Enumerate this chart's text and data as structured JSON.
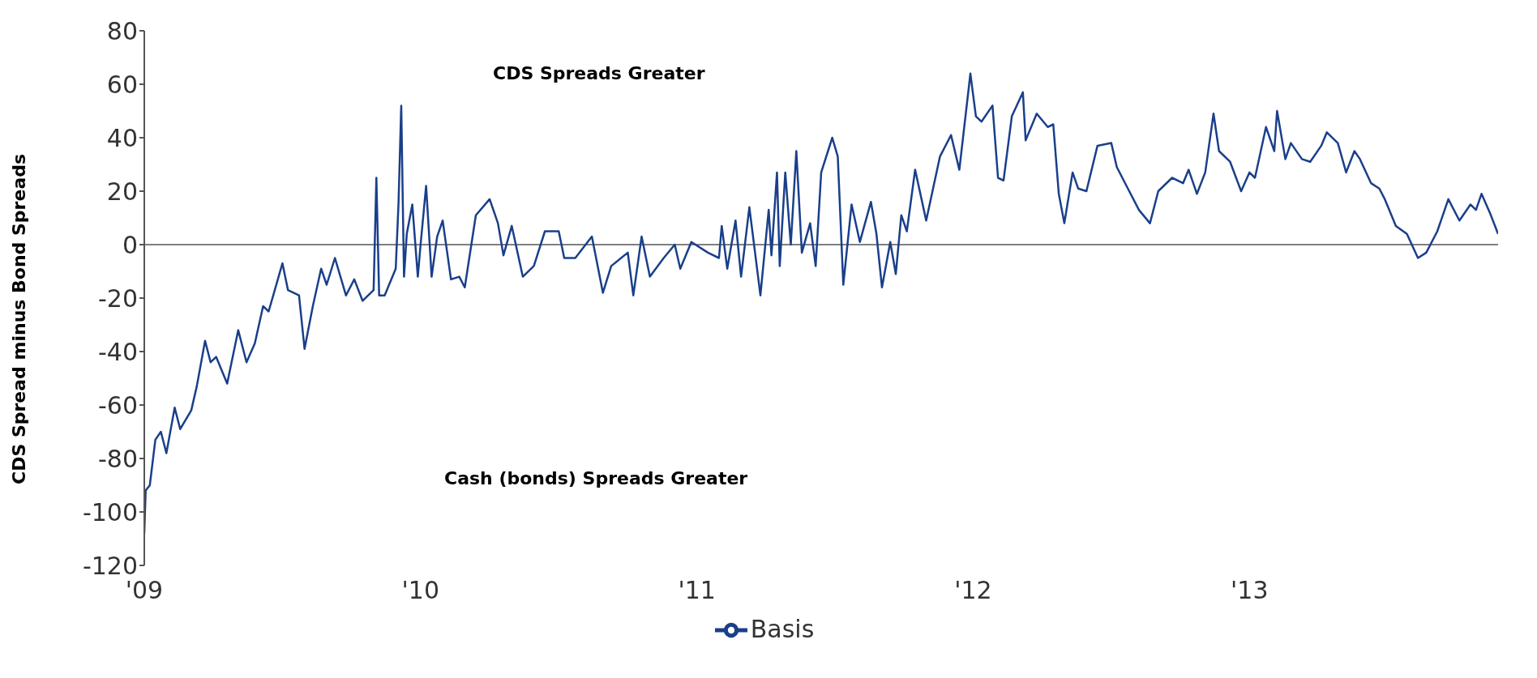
{
  "chart_data": {
    "type": "line",
    "ylabel": "CDS Spread minus Bond Spreads",
    "annotations": [
      "CDS Spreads Greater",
      "Cash (bonds) Spreads Greater"
    ],
    "x": [
      2009.0,
      2009.005,
      2009.02,
      2009.04,
      2009.06,
      2009.08,
      2009.11,
      2009.13,
      2009.17,
      2009.19,
      2009.22,
      2009.24,
      2009.26,
      2009.3,
      2009.34,
      2009.37,
      2009.4,
      2009.43,
      2009.45,
      2009.5,
      2009.52,
      2009.56,
      2009.58,
      2009.61,
      2009.64,
      2009.66,
      2009.69,
      2009.73,
      2009.76,
      2009.79,
      2009.83,
      2009.84,
      2009.85,
      2009.87,
      2009.91,
      2009.92,
      2009.93,
      2009.94,
      2009.95,
      2009.97,
      2009.99,
      2010.0,
      2010.02,
      2010.04,
      2010.06,
      2010.08,
      2010.11,
      2010.14,
      2010.16,
      2010.2,
      2010.25,
      2010.28,
      2010.3,
      2010.33,
      2010.37,
      2010.41,
      2010.45,
      2010.5,
      2010.52,
      2010.56,
      2010.62,
      2010.66,
      2010.69,
      2010.75,
      2010.77,
      2010.8,
      2010.83,
      2010.88,
      2010.92,
      2010.94,
      2010.98,
      2011.04,
      2011.08,
      2011.09,
      2011.11,
      2011.14,
      2011.16,
      2011.19,
      2011.23,
      2011.26,
      2011.27,
      2011.29,
      2011.3,
      2011.32,
      2011.34,
      2011.36,
      2011.38,
      2011.41,
      2011.43,
      2011.45,
      2011.49,
      2011.51,
      2011.53,
      2011.56,
      2011.59,
      2011.63,
      2011.65,
      2011.67,
      2011.7,
      2011.72,
      2011.74,
      2011.76,
      2011.79,
      2011.83,
      2011.88,
      2011.92,
      2011.95,
      2011.99,
      2012.01,
      2012.03,
      2012.07,
      2012.09,
      2012.11,
      2012.14,
      2012.18,
      2012.19,
      2012.23,
      2012.27,
      2012.29,
      2012.31,
      2012.33,
      2012.36,
      2012.38,
      2012.41,
      2012.45,
      2012.5,
      2012.52,
      2012.56,
      2012.6,
      2012.64,
      2012.67,
      2012.72,
      2012.76,
      2012.78,
      2012.81,
      2012.84,
      2012.87,
      2012.89,
      2012.93,
      2012.97,
      2013.0,
      2013.02,
      2013.06,
      2013.09,
      2013.1,
      2013.13,
      2013.15,
      2013.19,
      2013.22,
      2013.26,
      2013.28,
      2013.32,
      2013.35,
      2013.38,
      2013.4,
      2013.44,
      2013.47,
      2013.49,
      2013.53,
      2013.57,
      2013.61,
      2013.64,
      2013.68,
      2013.72,
      2013.76,
      2013.8,
      2013.82,
      2013.84,
      2013.87,
      2013.9
    ],
    "series": [
      {
        "name": "Basis",
        "color": "#1a3f8a",
        "values": [
          -108,
          -92,
          -90,
          -73,
          -70,
          -78,
          -61,
          -69,
          -62,
          -53,
          -36,
          -44,
          -42,
          -52,
          -32,
          -44,
          -37,
          -23,
          -25,
          -7,
          -17,
          -19,
          -39,
          -23,
          -9,
          -15,
          -5,
          -19,
          -13,
          -21,
          -17,
          25,
          -19,
          -19,
          -9,
          15,
          52,
          -12,
          4,
          15,
          -12,
          0,
          22,
          -12,
          3,
          9,
          -13,
          -12,
          -16,
          11,
          17,
          8,
          -4,
          7,
          -12,
          -8,
          5,
          5,
          -5,
          -5,
          3,
          -18,
          -8,
          -3,
          -19,
          3,
          -12,
          -5,
          0,
          -9,
          1,
          -3,
          -5,
          7,
          -9,
          9,
          -12,
          14,
          -19,
          13,
          -4,
          27,
          -8,
          27,
          0,
          35,
          -3,
          8,
          -8,
          27,
          40,
          33,
          -15,
          15,
          1,
          16,
          4,
          -16,
          1,
          -11,
          11,
          5,
          28,
          9,
          33,
          41,
          28,
          64,
          48,
          46,
          52,
          25,
          24,
          48,
          57,
          39,
          49,
          44,
          45,
          19,
          8,
          27,
          21,
          20,
          37,
          38,
          29,
          21,
          13,
          8,
          20,
          25,
          23,
          28,
          19,
          27,
          49,
          35,
          31,
          20,
          27,
          25,
          44,
          35,
          50,
          32,
          38,
          32,
          31,
          37,
          42,
          38,
          27,
          35,
          32,
          23,
          21,
          17,
          7,
          4,
          -5,
          -3,
          5,
          17,
          9,
          15,
          13,
          19,
          12,
          4
        ]
      }
    ],
    "xlim": [
      2009.0,
      2013.9
    ],
    "xticks": [
      {
        "value": 2009,
        "label": "'09"
      },
      {
        "value": 2010,
        "label": "'10"
      },
      {
        "value": 2011,
        "label": "'11"
      },
      {
        "value": 2012,
        "label": "'12"
      },
      {
        "value": 2013,
        "label": "'13"
      }
    ],
    "ylim": [
      -120,
      80
    ],
    "yticks": [
      -120,
      -100,
      -80,
      -60,
      -40,
      -20,
      0,
      20,
      40,
      60,
      80
    ],
    "ref_lines": [
      {
        "axis": "y",
        "value": 0,
        "color": "#808080"
      }
    ],
    "grid": false,
    "legend": "bottom",
    "marker": "none",
    "line_style": "solid"
  }
}
